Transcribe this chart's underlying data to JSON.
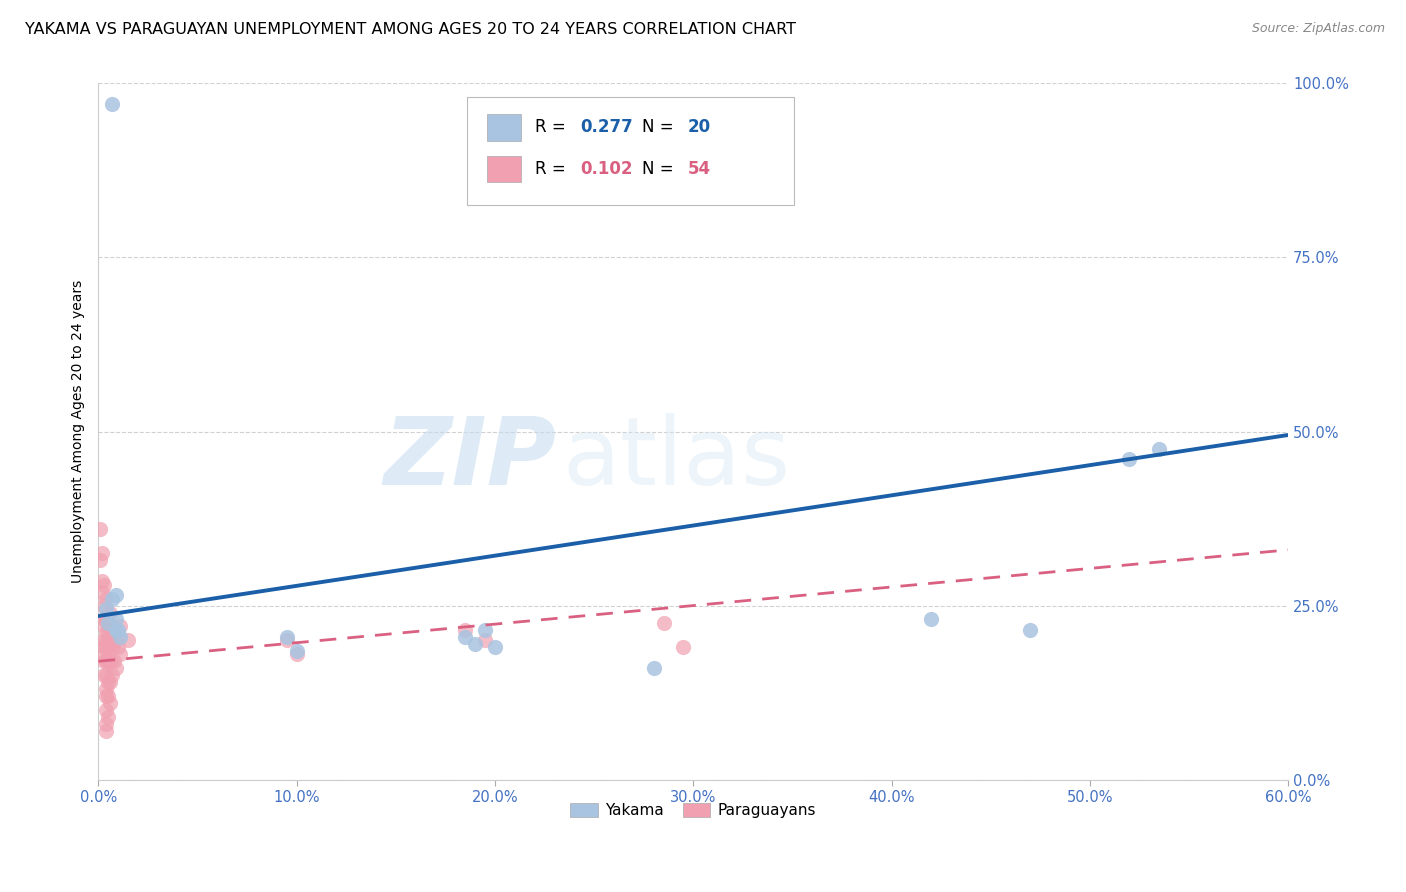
{
  "title": "YAKAMA VS PARAGUAYAN UNEMPLOYMENT AMONG AGES 20 TO 24 YEARS CORRELATION CHART",
  "source": "Source: ZipAtlas.com",
  "ylabel_label": "Unemployment Among Ages 20 to 24 years",
  "xlim": [
    0.0,
    0.6
  ],
  "ylim": [
    0.0,
    1.0
  ],
  "watermark_zip": "ZIP",
  "watermark_atlas": "atlas",
  "legend_bottom": [
    "Yakama",
    "Paraguayans"
  ],
  "yakama_scatter": [
    [
      0.007,
      0.97
    ],
    [
      0.004,
      0.245
    ],
    [
      0.005,
      0.225
    ],
    [
      0.007,
      0.26
    ],
    [
      0.009,
      0.265
    ],
    [
      0.009,
      0.23
    ],
    [
      0.009,
      0.215
    ],
    [
      0.01,
      0.215
    ],
    [
      0.011,
      0.205
    ],
    [
      0.095,
      0.205
    ],
    [
      0.1,
      0.185
    ],
    [
      0.185,
      0.205
    ],
    [
      0.19,
      0.195
    ],
    [
      0.195,
      0.215
    ],
    [
      0.2,
      0.19
    ],
    [
      0.28,
      0.16
    ],
    [
      0.42,
      0.23
    ],
    [
      0.47,
      0.215
    ],
    [
      0.52,
      0.46
    ],
    [
      0.535,
      0.475
    ]
  ],
  "paraguayan_scatter": [
    [
      0.001,
      0.36
    ],
    [
      0.001,
      0.315
    ],
    [
      0.002,
      0.325
    ],
    [
      0.002,
      0.285
    ],
    [
      0.002,
      0.27
    ],
    [
      0.003,
      0.28
    ],
    [
      0.003,
      0.25
    ],
    [
      0.003,
      0.23
    ],
    [
      0.003,
      0.22
    ],
    [
      0.003,
      0.2
    ],
    [
      0.003,
      0.19
    ],
    [
      0.003,
      0.18
    ],
    [
      0.003,
      0.17
    ],
    [
      0.003,
      0.15
    ],
    [
      0.004,
      0.26
    ],
    [
      0.004,
      0.23
    ],
    [
      0.004,
      0.21
    ],
    [
      0.004,
      0.2
    ],
    [
      0.004,
      0.19
    ],
    [
      0.004,
      0.17
    ],
    [
      0.004,
      0.15
    ],
    [
      0.004,
      0.13
    ],
    [
      0.004,
      0.12
    ],
    [
      0.004,
      0.1
    ],
    [
      0.004,
      0.08
    ],
    [
      0.004,
      0.07
    ],
    [
      0.005,
      0.22
    ],
    [
      0.005,
      0.19
    ],
    [
      0.005,
      0.17
    ],
    [
      0.005,
      0.14
    ],
    [
      0.005,
      0.12
    ],
    [
      0.005,
      0.09
    ],
    [
      0.006,
      0.24
    ],
    [
      0.006,
      0.2
    ],
    [
      0.006,
      0.17
    ],
    [
      0.006,
      0.14
    ],
    [
      0.006,
      0.11
    ],
    [
      0.007,
      0.22
    ],
    [
      0.007,
      0.19
    ],
    [
      0.007,
      0.15
    ],
    [
      0.008,
      0.21
    ],
    [
      0.008,
      0.17
    ],
    [
      0.009,
      0.2
    ],
    [
      0.009,
      0.16
    ],
    [
      0.01,
      0.19
    ],
    [
      0.011,
      0.22
    ],
    [
      0.011,
      0.18
    ],
    [
      0.015,
      0.2
    ],
    [
      0.095,
      0.2
    ],
    [
      0.1,
      0.18
    ],
    [
      0.185,
      0.215
    ],
    [
      0.195,
      0.2
    ],
    [
      0.285,
      0.225
    ],
    [
      0.295,
      0.19
    ]
  ],
  "yakama_line_x": [
    0.0,
    0.6
  ],
  "yakama_line_y": [
    0.235,
    0.495
  ],
  "paraguayan_line_x": [
    0.0,
    0.6
  ],
  "paraguayan_line_y": [
    0.17,
    0.33
  ],
  "yakama_line_color": "#1a5fa8",
  "paraguayan_line_color": "#d96080",
  "yakama_scatter_color": "#a8c4e0",
  "paraguayan_scatter_color": "#f0a0b0",
  "scatter_size": 120,
  "title_fontsize": 11.5,
  "axis_label_fontsize": 10,
  "tick_fontsize": 10.5,
  "tick_color": "#4472c4",
  "background_color": "#ffffff",
  "grid_color": "#cccccc",
  "r_yakama": "0.277",
  "n_yakama": "20",
  "r_paraguayan": "0.102",
  "n_paraguayan": "54"
}
